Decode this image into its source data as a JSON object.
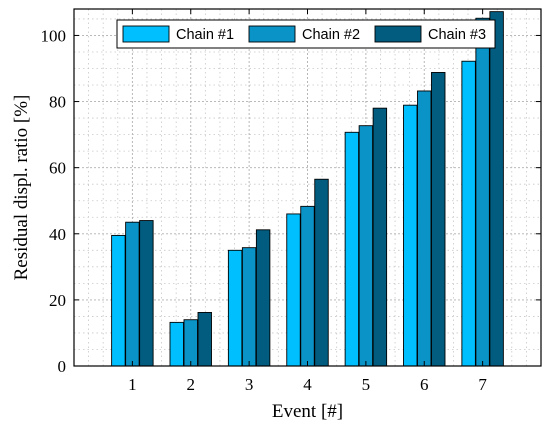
{
  "chart_data": {
    "type": "bar",
    "categories": [
      "1",
      "2",
      "3",
      "4",
      "5",
      "6",
      "7"
    ],
    "series": [
      {
        "name": "Chain #1",
        "color": "#00BFFF",
        "values": [
          39.5,
          13.2,
          35.0,
          46.0,
          70.7,
          78.9,
          92.2
        ]
      },
      {
        "name": "Chain #2",
        "color": "#0A93C7",
        "values": [
          43.5,
          14.0,
          35.8,
          48.3,
          72.7,
          83.2,
          105.2
        ]
      },
      {
        "name": "Chain #3",
        "color": "#015C80",
        "values": [
          44.0,
          16.2,
          41.2,
          56.5,
          78.0,
          88.8,
          107.2
        ]
      }
    ],
    "xlabel": "Event [#]",
    "ylabel": "Residual displ. ratio [%]",
    "ylim": [
      0,
      108
    ],
    "yticks": [
      "0",
      "20",
      "40",
      "60",
      "80",
      "100"
    ],
    "grid": true,
    "minor_grid": true,
    "legend_position": "top"
  }
}
